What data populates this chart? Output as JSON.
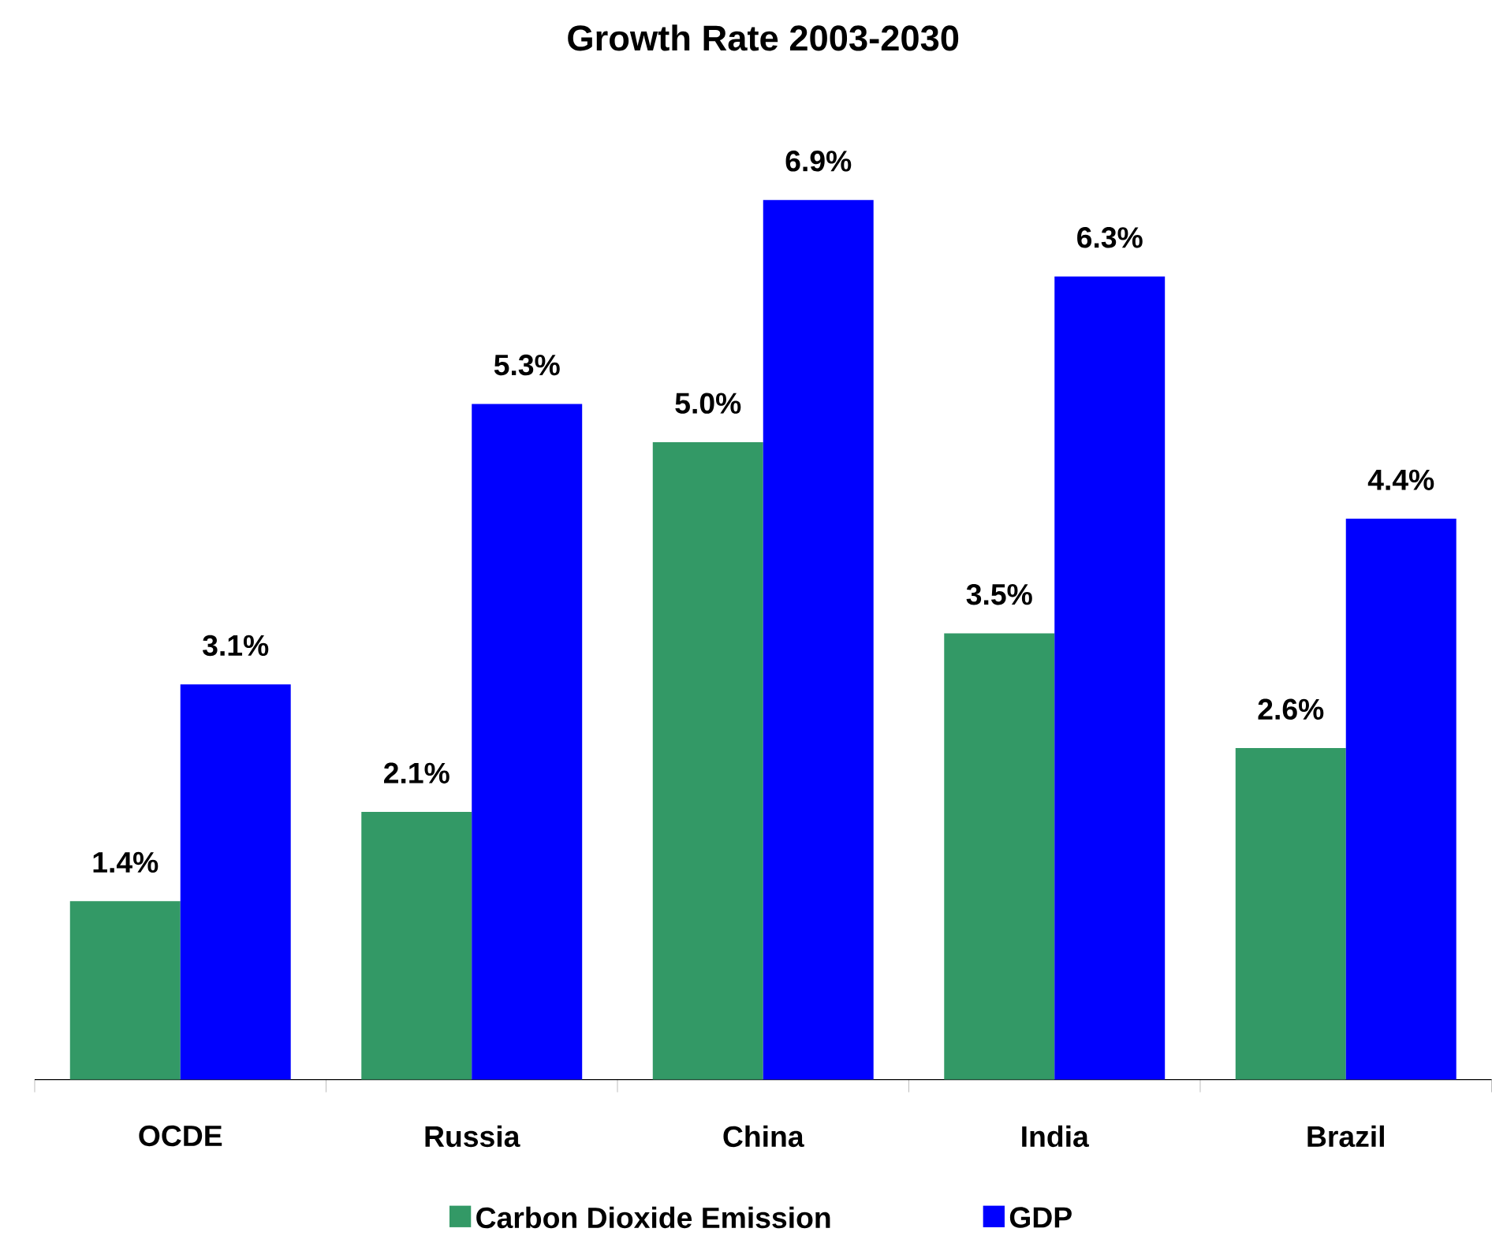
{
  "chart_data": {
    "type": "bar",
    "title": "Growth Rate 2003-2030",
    "categories": [
      "OCDE",
      "Russia",
      "China",
      "India",
      "Brazil"
    ],
    "series": [
      {
        "name": "Carbon Dioxide Emission",
        "color": "#339966",
        "values": [
          1.4,
          2.1,
          5.0,
          3.5,
          2.6
        ],
        "value_labels": [
          "1.4%",
          "2.1%",
          "5.0%",
          "3.5%",
          "2.6%"
        ]
      },
      {
        "name": "GDP",
        "color": "#0000ff",
        "values": [
          3.1,
          5.3,
          6.9,
          6.3,
          4.4
        ],
        "value_labels": [
          "3.1%",
          "5.3%",
          "6.9%",
          "6.3%",
          "4.4%"
        ]
      }
    ],
    "legend": "bottom"
  }
}
